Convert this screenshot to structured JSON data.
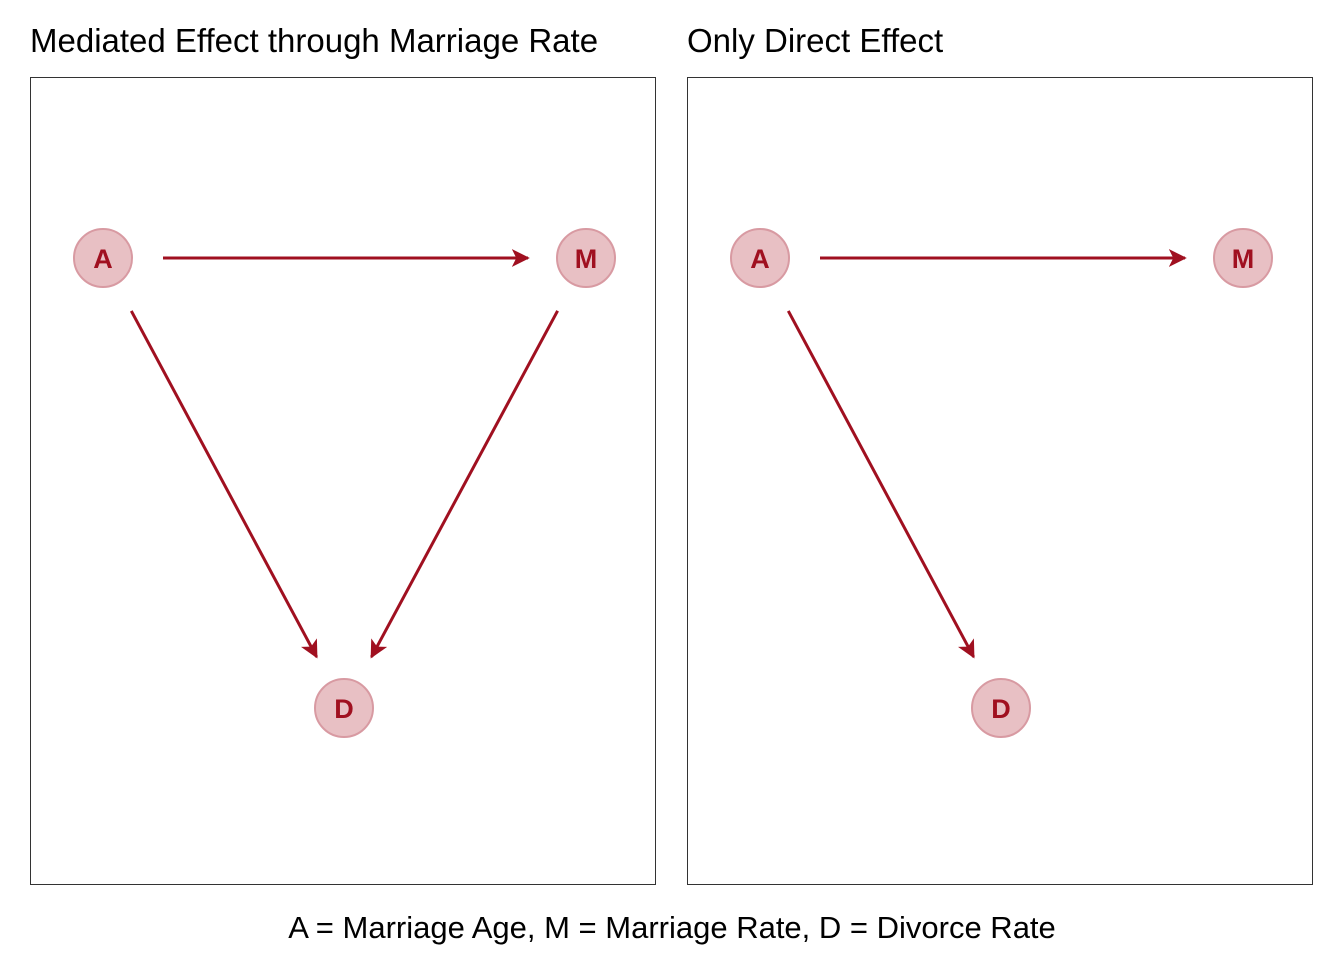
{
  "panels": [
    {
      "title": "Mediated Effect through Marriage Rate",
      "nodes": [
        {
          "id": "A",
          "label": "A"
        },
        {
          "id": "M",
          "label": "M"
        },
        {
          "id": "D",
          "label": "D"
        }
      ],
      "edges": [
        {
          "from": "A",
          "to": "M"
        },
        {
          "from": "A",
          "to": "D"
        },
        {
          "from": "M",
          "to": "D"
        }
      ]
    },
    {
      "title": "Only Direct Effect",
      "nodes": [
        {
          "id": "A",
          "label": "A"
        },
        {
          "id": "M",
          "label": "M"
        },
        {
          "id": "D",
          "label": "D"
        }
      ],
      "edges": [
        {
          "from": "A",
          "to": "M"
        },
        {
          "from": "A",
          "to": "D"
        }
      ]
    }
  ],
  "caption": "A = Marriage Age, M = Marriage Rate, D = Divorce Rate",
  "colors": {
    "node_fill": "#e8c0c4",
    "node_stroke": "#d89aa2",
    "label": "#a01020",
    "edge": "#a01020",
    "frame": "#333333"
  }
}
